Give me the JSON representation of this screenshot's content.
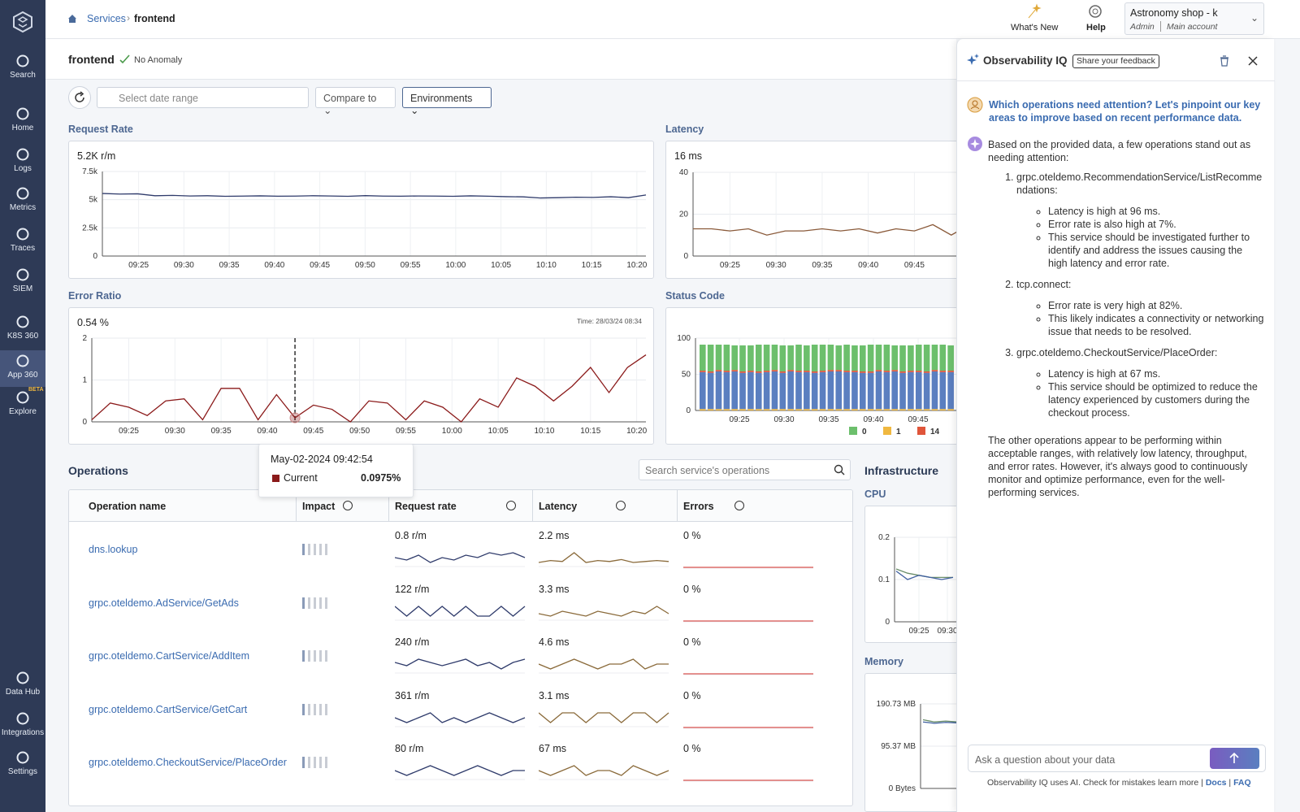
{
  "sidebar": {
    "items": [
      "Search",
      "Home",
      "Logs",
      "Metrics",
      "Traces",
      "SIEM",
      "K8S 360",
      "App 360",
      "Explore",
      "Data Hub",
      "Integrations",
      "Settings"
    ],
    "beta": "BETA"
  },
  "topbar": {
    "breadcrumb": [
      "Services",
      "frontend"
    ],
    "whats_new": "What's New",
    "help": "Help",
    "account": {
      "name": "Astronomy shop - k",
      "role": "Admin",
      "sub": "Main account"
    }
  },
  "header": {
    "service": "frontend",
    "status": "No Anomaly"
  },
  "toolbar": {
    "date_placeholder": "Select date range",
    "compare": "Compare to",
    "environments": "Environments"
  },
  "charts": {
    "request_rate": {
      "type": "line",
      "title": "Request Rate",
      "current": "5.2K r/m",
      "color": "#2f3b6b",
      "ylim": [
        0,
        7500
      ],
      "yticks": [
        0,
        {
          "value": 2500,
          "label": "2.5k"
        },
        {
          "value": 5000,
          "label": "5k"
        },
        {
          "value": 7500,
          "label": "7.5k"
        }
      ],
      "x_labels": [
        "09:25",
        "09:30",
        "09:35",
        "09:40",
        "09:45",
        "09:50",
        "09:55",
        "10:00",
        "10:05",
        "10:10",
        "10:15",
        "10:20"
      ],
      "values": [
        5550,
        5500,
        5520,
        5350,
        5380,
        5330,
        5350,
        5300,
        5320,
        5340,
        5310,
        5320,
        5350,
        5330,
        5300,
        5360,
        5320,
        5310,
        5330,
        5320,
        5300,
        5340,
        5310,
        5270,
        5250,
        5150,
        5180,
        5220,
        5200,
        5260,
        5180,
        5420
      ]
    },
    "latency": {
      "type": "line",
      "title": "Latency",
      "current": "16 ms",
      "color": "#8a5a3a",
      "ylim": [
        0,
        40
      ],
      "yticks": [
        0,
        20,
        40
      ],
      "x_labels": [
        "09:25",
        "09:30",
        "09:35",
        "09:40",
        "09:45"
      ],
      "values": [
        13,
        13,
        12,
        13,
        10,
        12,
        12,
        13,
        12,
        13,
        11,
        13,
        12,
        15,
        10,
        15
      ]
    },
    "error_ratio": {
      "type": "line",
      "title": "Error Ratio",
      "current": "0.54 %",
      "time": "Time: 28/03/24 08:34",
      "color": "#8b1a1a",
      "ylim": [
        0,
        2
      ],
      "yticks": [
        0,
        1,
        2
      ],
      "x_labels": [
        "09:25",
        "09:30",
        "09:35",
        "09:40",
        "09:45",
        "09:50",
        "09:55",
        "10:00",
        "10:05",
        "10:10",
        "10:15",
        "10:20"
      ],
      "values": [
        0.05,
        0.45,
        0.35,
        0.15,
        0.5,
        0.55,
        0.05,
        0.8,
        0.8,
        0.05,
        0.65,
        0.0975,
        0.4,
        0.3,
        0.0,
        0.5,
        0.45,
        0.05,
        0.5,
        0.35,
        0.0,
        0.55,
        0.35,
        1.05,
        0.85,
        0.5,
        0.85,
        1.3,
        0.7,
        1.3,
        1.6
      ],
      "tooltip": {
        "time": "May-02-2024 09:42:54",
        "series": "Current",
        "value": 0.0975,
        "value_label": "0.0975%"
      }
    },
    "status_code": {
      "type": "bar",
      "title": "Status Code",
      "ylim": [
        0,
        100
      ],
      "yticks": [
        0,
        50,
        100
      ],
      "x_labels": [
        "09:25",
        "09:30",
        "09:35",
        "09:40",
        "09:45"
      ],
      "series": [
        {
          "name": "0",
          "color": "#6cbf6c",
          "values": [
            36,
            37,
            35,
            36,
            34,
            36,
            35,
            37,
            36,
            35,
            36,
            34,
            36,
            35,
            37,
            36,
            35,
            34,
            36,
            35,
            36,
            37,
            35,
            36,
            34,
            36,
            35,
            36,
            37,
            35,
            36,
            35
          ]
        },
        {
          "name": "1",
          "color": "#f0b840",
          "values": [
            2,
            2,
            2,
            2,
            2,
            2,
            2,
            2,
            2,
            2,
            2,
            2,
            2,
            2,
            2,
            2,
            2,
            2,
            2,
            2,
            2,
            2,
            2,
            2,
            2,
            2,
            2,
            2,
            2,
            2,
            2,
            2
          ]
        },
        {
          "name": "14",
          "color": "#e0553a",
          "values": [
            2,
            2,
            2,
            2,
            2,
            2,
            2,
            2,
            2,
            2,
            2,
            2,
            2,
            2,
            2,
            2,
            2,
            2,
            2,
            2,
            2,
            2,
            2,
            2,
            2,
            2,
            2,
            2,
            2,
            2,
            2,
            2
          ]
        },
        {
          "color": "#5b7fc0",
          "values": [
            51,
            50,
            52,
            51,
            52,
            50,
            51,
            50,
            51,
            52,
            50,
            52,
            51,
            51,
            50,
            51,
            52,
            52,
            51,
            51,
            50,
            50,
            52,
            51,
            52,
            50,
            51,
            51,
            50,
            52,
            51,
            51
          ]
        }
      ]
    }
  },
  "operations": {
    "title": "Operations",
    "search_placeholder": "Search service's operations",
    "columns": [
      "Operation name",
      "Impact",
      "Request rate",
      "Latency",
      "Errors"
    ],
    "rows": [
      {
        "name": "dns.lookup",
        "rate": "0.8 r/m",
        "latency": "2.2 ms",
        "errors": "0 %",
        "rate_trend": [
          0.8,
          0.7,
          0.9,
          0.6,
          0.8,
          0.7,
          0.9,
          0.8,
          1.0,
          0.9,
          1.0,
          0.8
        ],
        "latency_trend": [
          2.0,
          2.2,
          2.1,
          3.0,
          2.0,
          2.2,
          2.1,
          2.3,
          2.0,
          2.1,
          2.2,
          2.1
        ],
        "error_trend": [
          0,
          0,
          0,
          0,
          0,
          0,
          0,
          0,
          0,
          0,
          0,
          0
        ]
      },
      {
        "name": "grpc.oteldemo.AdService/GetAds",
        "rate": "122 r/m",
        "latency": "3.3 ms",
        "errors": "0 %",
        "rate_trend": [
          122,
          121,
          122,
          121,
          122,
          121,
          122,
          121,
          121,
          122,
          121,
          122
        ],
        "latency_trend": [
          3.3,
          3.2,
          3.4,
          3.3,
          3.2,
          3.4,
          3.3,
          3.2,
          3.4,
          3.3,
          3.6,
          3.3
        ],
        "error_trend": [
          0,
          0,
          0,
          0,
          0,
          0,
          0,
          0,
          0,
          0,
          0,
          0
        ]
      },
      {
        "name": "grpc.oteldemo.CartService/AddItem",
        "rate": "240 r/m",
        "latency": "4.6 ms",
        "errors": "0 %",
        "rate_trend": [
          240,
          239,
          241,
          240,
          239,
          240,
          241,
          239,
          240,
          238,
          240,
          241
        ],
        "latency_trend": [
          4.6,
          4.5,
          4.6,
          4.7,
          4.6,
          4.5,
          4.6,
          4.6,
          4.7,
          4.5,
          4.6,
          4.6
        ],
        "error_trend": [
          0,
          0,
          0,
          0,
          0,
          0,
          0,
          0,
          0,
          0,
          0,
          0
        ]
      },
      {
        "name": "grpc.oteldemo.CartService/GetCart",
        "rate": "361 r/m",
        "latency": "3.1 ms",
        "errors": "0 %",
        "rate_trend": [
          361,
          360,
          361,
          362,
          360,
          361,
          360,
          361,
          362,
          361,
          360,
          361
        ],
        "latency_trend": [
          3.1,
          3.0,
          3.1,
          3.1,
          3.0,
          3.1,
          3.1,
          3.0,
          3.1,
          3.1,
          3.0,
          3.1
        ],
        "error_trend": [
          0,
          0,
          0,
          0,
          0,
          0,
          0,
          0,
          0,
          0,
          0,
          0
        ]
      },
      {
        "name": "grpc.oteldemo.CheckoutService/PlaceOrder",
        "rate": "80 r/m",
        "latency": "67 ms",
        "errors": "0 %",
        "rate_trend": [
          80,
          79,
          80,
          81,
          80,
          79,
          80,
          81,
          80,
          79,
          80,
          80
        ],
        "latency_trend": [
          67,
          66,
          67,
          68,
          66,
          67,
          67,
          66,
          68,
          67,
          66,
          67
        ],
        "error_trend": [
          0,
          0,
          0,
          0,
          0,
          0,
          0,
          0,
          0,
          0,
          0,
          0
        ]
      }
    ]
  },
  "infrastructure": {
    "title": "Infrastructure",
    "cpu": {
      "type": "line",
      "title": "CPU",
      "ylim": [
        0,
        0.2
      ],
      "yticks": [
        0,
        0.1,
        0.2
      ],
      "x_labels": [
        "09:25",
        "09:30"
      ],
      "series": [
        {
          "color": "#6a8e6a",
          "values": [
            0.125,
            0.115,
            0.11,
            0.105,
            0.105,
            0.105
          ]
        },
        {
          "color": "#3f5f9f",
          "values": [
            0.12,
            0.1,
            0.11,
            0.105,
            0.1,
            0.105
          ]
        }
      ]
    },
    "memory": {
      "type": "line",
      "title": "Memory",
      "ylim": [
        0,
        190.73
      ],
      "yticks": [
        {
          "value": 0,
          "label": "0 Bytes"
        },
        {
          "value": 95.37,
          "label": "95.37 MB"
        },
        {
          "value": 190.73,
          "label": "190.73 MB"
        }
      ],
      "series": [
        {
          "color": "#6a8e6a",
          "values": [
            155,
            150,
            152,
            150
          ]
        },
        {
          "color": "#3f5f9f",
          "values": [
            150,
            147,
            149,
            148
          ]
        }
      ]
    }
  },
  "iq": {
    "title": "Observability IQ",
    "feedback": "Share your feedback",
    "question": "Which operations need attention? Let's pinpoint our key areas to improve based on recent performance data.",
    "intro": "Based on the provided data, a few operations stand out as needing attention:",
    "items": [
      {
        "name": "grpc.oteldemo.RecommendationService/ListRecommendations:",
        "points": [
          "Latency is high at 96 ms.",
          "Error rate is also high at 7%.",
          "This service should be investigated further to identify and address the issues causing the high latency and error rate."
        ]
      },
      {
        "name": "tcp.connect:",
        "points": [
          "Error rate is very high at 82%.",
          "This likely indicates a connectivity or networking issue that needs to be resolved."
        ]
      },
      {
        "name": "grpc.oteldemo.CheckoutService/PlaceOrder:",
        "points": [
          "Latency is high at 67 ms.",
          "This service should be optimized to reduce the latency experienced by customers during the checkout process."
        ]
      }
    ],
    "outro": "The other operations appear to be performing within acceptable ranges, with relatively low latency, throughput, and error rates. However, it's always good to continuously monitor and optimize performance, even for the well-performing services.",
    "input_placeholder": "Ask a question about your data",
    "footer": "Observability IQ uses AI. Check for mistakes learn more |",
    "docs": "Docs",
    "faq": "FAQ"
  }
}
